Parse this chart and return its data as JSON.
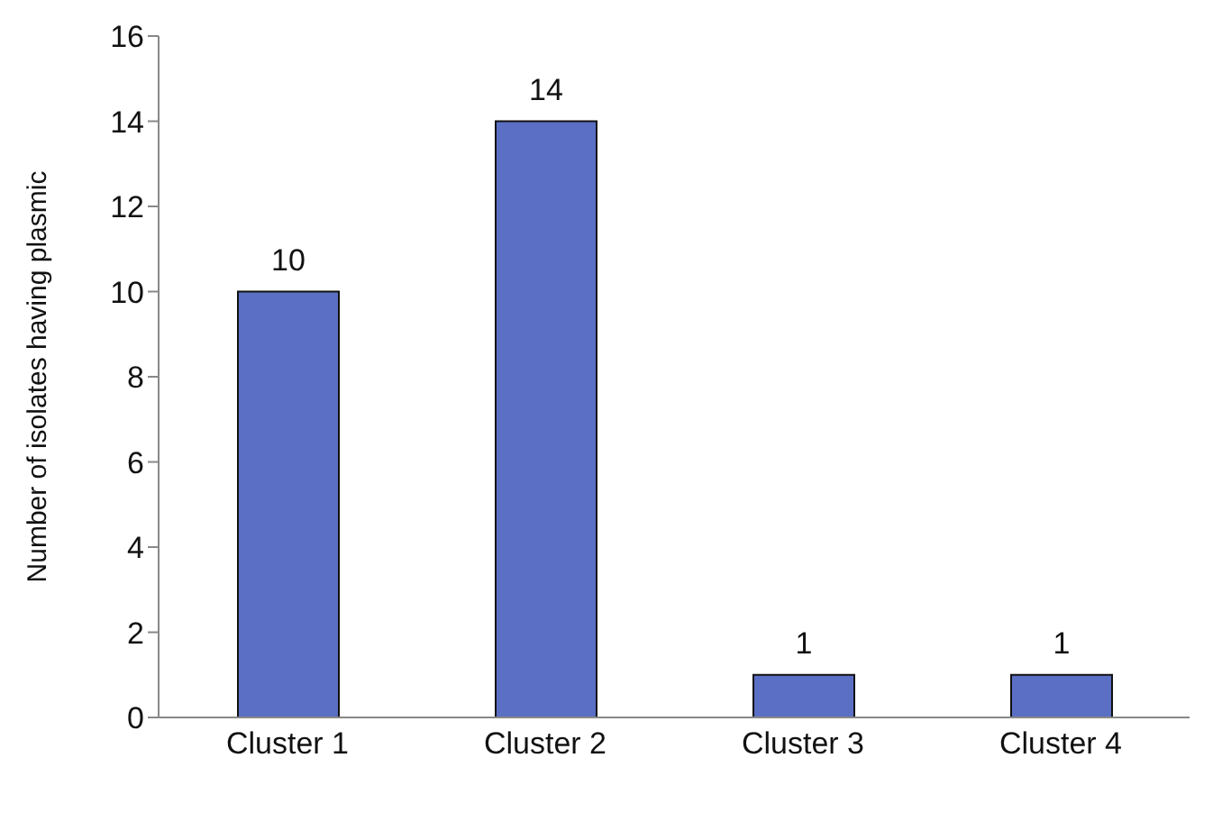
{
  "chart_data": {
    "type": "bar",
    "ylabel": "Number of isolates having plasmic",
    "categories": [
      "Cluster 1",
      "Cluster 2",
      "Cluster 3",
      "Cluster 4"
    ],
    "values": [
      10,
      14,
      1,
      1
    ],
    "color": "#5b6fc4",
    "ylim": [
      0,
      16
    ],
    "yticks": [
      0,
      2,
      4,
      6,
      8,
      10,
      12,
      14,
      16
    ],
    "grid": false,
    "data_labels": true
  }
}
